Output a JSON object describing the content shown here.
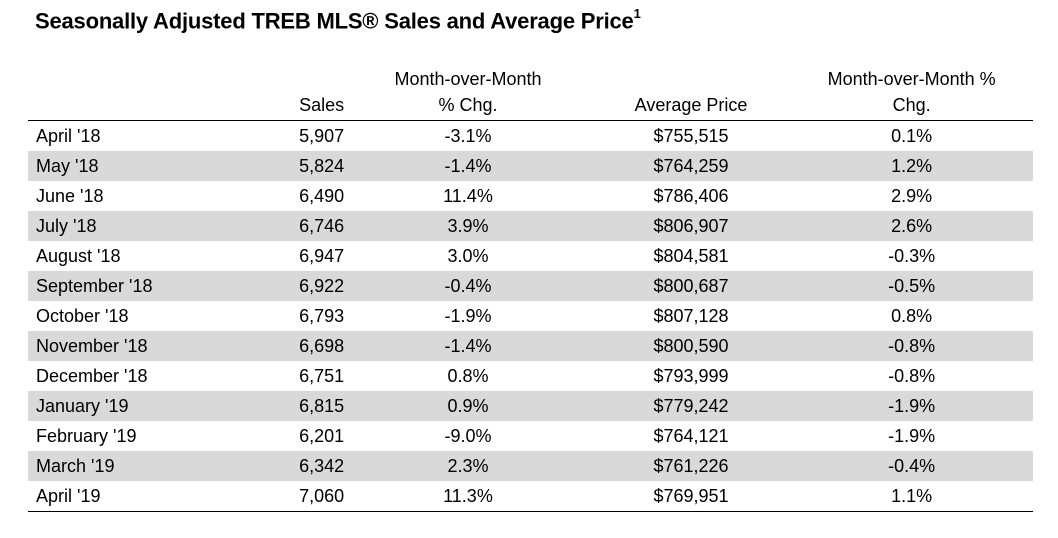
{
  "title": "Seasonally Adjusted TREB MLS® Sales and Average Price",
  "title_footnote": "1",
  "columns": {
    "month": "",
    "sales": "Sales",
    "sales_mom_line1": "Month-over-Month",
    "sales_mom_line2": "% Chg.",
    "avg_price": "Average Price",
    "price_mom_line1": "Month-over-Month %",
    "price_mom_line2": "Chg."
  },
  "rows": [
    {
      "month": "April '18",
      "sales": "5,907",
      "sales_mom": "-3.1%",
      "avg_price": "$755,515",
      "price_mom": "0.1%"
    },
    {
      "month": "May '18",
      "sales": "5,824",
      "sales_mom": "-1.4%",
      "avg_price": "$764,259",
      "price_mom": "1.2%"
    },
    {
      "month": "June '18",
      "sales": "6,490",
      "sales_mom": "11.4%",
      "avg_price": "$786,406",
      "price_mom": "2.9%"
    },
    {
      "month": "July '18",
      "sales": "6,746",
      "sales_mom": "3.9%",
      "avg_price": "$806,907",
      "price_mom": "2.6%"
    },
    {
      "month": "August '18",
      "sales": "6,947",
      "sales_mom": "3.0%",
      "avg_price": "$804,581",
      "price_mom": "-0.3%"
    },
    {
      "month": "September '18",
      "sales": "6,922",
      "sales_mom": "-0.4%",
      "avg_price": "$800,687",
      "price_mom": "-0.5%"
    },
    {
      "month": "October '18",
      "sales": "6,793",
      "sales_mom": "-1.9%",
      "avg_price": "$807,128",
      "price_mom": "0.8%"
    },
    {
      "month": "November '18",
      "sales": "6,698",
      "sales_mom": "-1.4%",
      "avg_price": "$800,590",
      "price_mom": "-0.8%"
    },
    {
      "month": "December '18",
      "sales": "6,751",
      "sales_mom": "0.8%",
      "avg_price": "$793,999",
      "price_mom": "-0.8%"
    },
    {
      "month": "January '19",
      "sales": "6,815",
      "sales_mom": "0.9%",
      "avg_price": "$779,242",
      "price_mom": "-1.9%"
    },
    {
      "month": "February '19",
      "sales": "6,201",
      "sales_mom": "-9.0%",
      "avg_price": "$764,121",
      "price_mom": "-1.9%"
    },
    {
      "month": "March '19",
      "sales": "6,342",
      "sales_mom": "2.3%",
      "avg_price": "$761,226",
      "price_mom": "-0.4%"
    },
    {
      "month": "April '19",
      "sales": "7,060",
      "sales_mom": "11.3%",
      "avg_price": "$769,951",
      "price_mom": "1.1%"
    }
  ],
  "colors": {
    "stripe": "#d9d9d9",
    "rule": "#000000"
  }
}
